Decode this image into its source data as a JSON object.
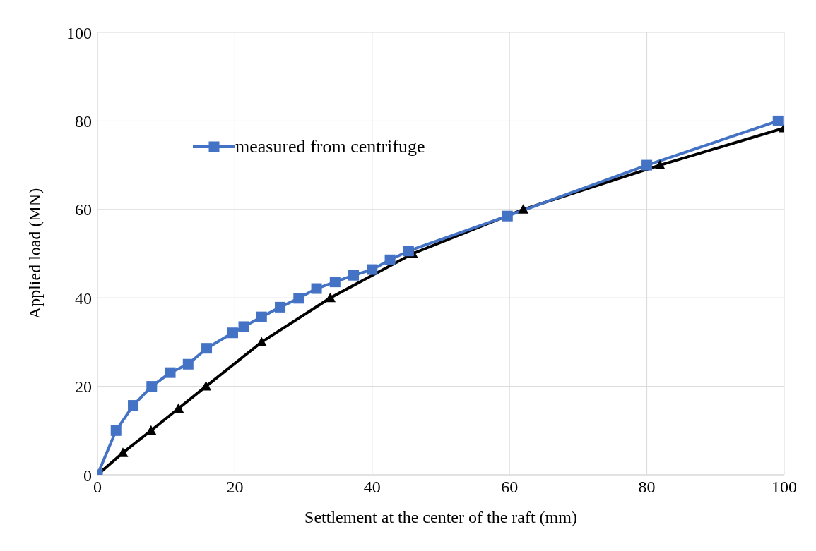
{
  "chart_data": {
    "type": "line",
    "xlabel": "Settlement at the center of the raft (mm)",
    "ylabel": "Applied load (MN)",
    "xlim": [
      0,
      100
    ],
    "xticks": [
      0,
      20,
      40,
      60,
      80,
      100
    ],
    "ylim": [
      0,
      100
    ],
    "yticks": [
      0,
      20,
      40,
      60,
      80,
      100
    ],
    "grid": true,
    "legend": "top left",
    "series": [
      {
        "color": "#000000",
        "marker": "triangle",
        "x": [
          0,
          3.7,
          7.8,
          11.8,
          15.8,
          23.9,
          33.9,
          45.9,
          62,
          81.9,
          100
        ],
        "values": [
          0,
          5,
          10,
          15,
          20,
          30,
          40,
          50,
          60,
          70,
          78.4
        ]
      },
      {
        "name": "measured from centrifuge",
        "color": "#4472c4",
        "marker": "square",
        "x": [
          0,
          2.7,
          5.2,
          7.9,
          10.6,
          13.2,
          15.9,
          19.7,
          21.3,
          23.9,
          26.6,
          29.3,
          31.9,
          34.6,
          37.3,
          40,
          42.6,
          45.3,
          59.7,
          80,
          99.1
        ],
        "values": [
          0,
          10,
          15.7,
          20,
          23.1,
          25,
          28.6,
          32.1,
          33.5,
          35.7,
          37.9,
          39.9,
          42.1,
          43.6,
          45.1,
          46.4,
          48.6,
          50.6,
          58.5,
          70,
          80
        ]
      }
    ]
  }
}
